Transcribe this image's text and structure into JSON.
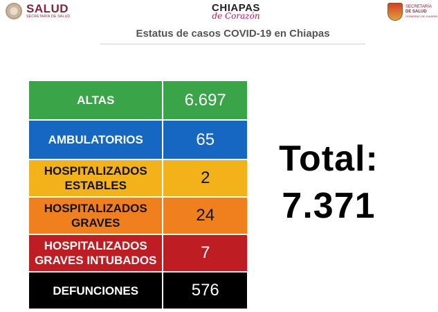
{
  "header": {
    "left_logo": {
      "name": "SALUD",
      "subtitle": "SECRETARÍA DE SALUD"
    },
    "center_logo": {
      "name": "CHIAPAS",
      "tagline": "de Corazón"
    },
    "right_logo": {
      "line1": "SECRETARÍA",
      "line2": "DE SALUD",
      "line3": "GOBIERNO DE CHIAPAS"
    }
  },
  "title": "Estatus de casos COVID-19 en Chiapas",
  "rows": [
    {
      "label_lines": [
        "ALTAS"
      ],
      "value": "6.697",
      "color": "#3aa548"
    },
    {
      "label_lines": [
        "AMBULATORIOS"
      ],
      "value": "65",
      "color": "#1567c2"
    },
    {
      "label_lines": [
        "HOSPITALIZADOS",
        "ESTABLES"
      ],
      "value": "2",
      "color": "#f3b21a"
    },
    {
      "label_lines": [
        "HOSPITALIZADOS",
        "GRAVES"
      ],
      "value": "24",
      "color": "#f07f1e"
    },
    {
      "label_lines": [
        "HOSPITALIZADOS",
        "GRAVES INTUBADOS"
      ],
      "value": "7",
      "color": "#be1e23"
    },
    {
      "label_lines": [
        "DEFUNCIONES"
      ],
      "value": "576",
      "color": "#000000"
    }
  ],
  "total": {
    "label": "Total:",
    "value": "7.371"
  }
}
